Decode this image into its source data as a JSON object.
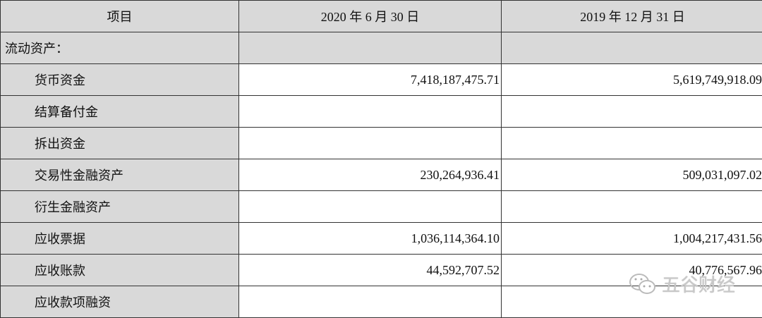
{
  "table": {
    "headers": [
      "项目",
      "2020 年 6 月 30 日",
      "2019 年 12 月 31 日"
    ],
    "rows": [
      {
        "label": "流动资产：",
        "v2020": "",
        "v2019": "",
        "section": true
      },
      {
        "label": "货币资金",
        "v2020": "7,418,187,475.71",
        "v2019": "5,619,749,918.09"
      },
      {
        "label": "结算备付金",
        "v2020": "",
        "v2019": ""
      },
      {
        "label": "拆出资金",
        "v2020": "",
        "v2019": ""
      },
      {
        "label": "交易性金融资产",
        "v2020": "230,264,936.41",
        "v2019": "509,031,097.02"
      },
      {
        "label": "衍生金融资产",
        "v2020": "",
        "v2019": ""
      },
      {
        "label": "应收票据",
        "v2020": "1,036,114,364.10",
        "v2019": "1,004,217,431.56"
      },
      {
        "label": "应收账款",
        "v2020": "44,592,707.52",
        "v2019": "40,776,567.96"
      },
      {
        "label": "应收款项融资",
        "v2020": "",
        "v2019": ""
      }
    ]
  },
  "watermark": {
    "text": "五谷财经",
    "icon": "wechat-icon"
  },
  "colors": {
    "header_bg": "#d9d9d9",
    "border": "#333333"
  }
}
